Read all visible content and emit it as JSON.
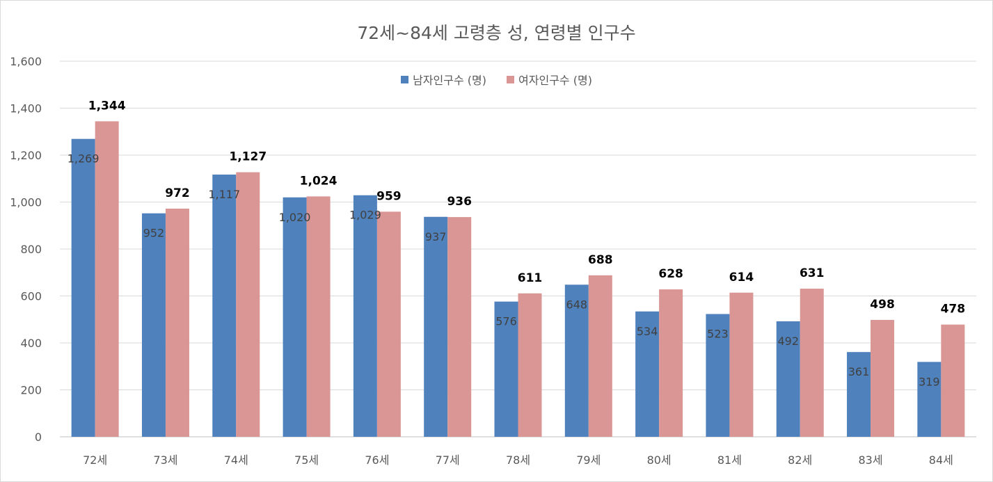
{
  "chart_data": {
    "type": "bar",
    "title": "72세~84세 고령층 성, 연령별 인구수",
    "categories": [
      "72세",
      "73세",
      "74세",
      "75세",
      "76세",
      "77세",
      "78세",
      "79세",
      "80세",
      "81세",
      "82세",
      "83세",
      "84세"
    ],
    "series": [
      {
        "name": "남자인구수 (명)",
        "color": "#4f81bd",
        "values": [
          1269,
          952,
          1117,
          1020,
          1029,
          937,
          576,
          648,
          534,
          523,
          492,
          361,
          319
        ]
      },
      {
        "name": "여자인구수 (명)",
        "color": "#d99694",
        "values": [
          1344,
          972,
          1127,
          1024,
          959,
          936,
          611,
          688,
          628,
          614,
          631,
          498,
          478
        ]
      }
    ],
    "ylim": [
      0,
      1600
    ],
    "yticks": [
      0,
      200,
      400,
      600,
      800,
      1000,
      1200,
      1400,
      1600
    ],
    "ytick_labels": [
      "0",
      "200",
      "400",
      "600",
      "800",
      "1,000",
      "1,200",
      "1,400",
      "1,600"
    ],
    "value_labels": {
      "male": [
        "1,269",
        "952",
        "1,117",
        "1,020",
        "1,029",
        "937",
        "576",
        "648",
        "534",
        "523",
        "492",
        "361",
        "319"
      ],
      "female": [
        "1,344",
        "972",
        "1,127",
        "1,024",
        "959",
        "936",
        "611",
        "688",
        "628",
        "614",
        "631",
        "498",
        "478"
      ]
    },
    "grid": true,
    "legend_position": "top"
  }
}
